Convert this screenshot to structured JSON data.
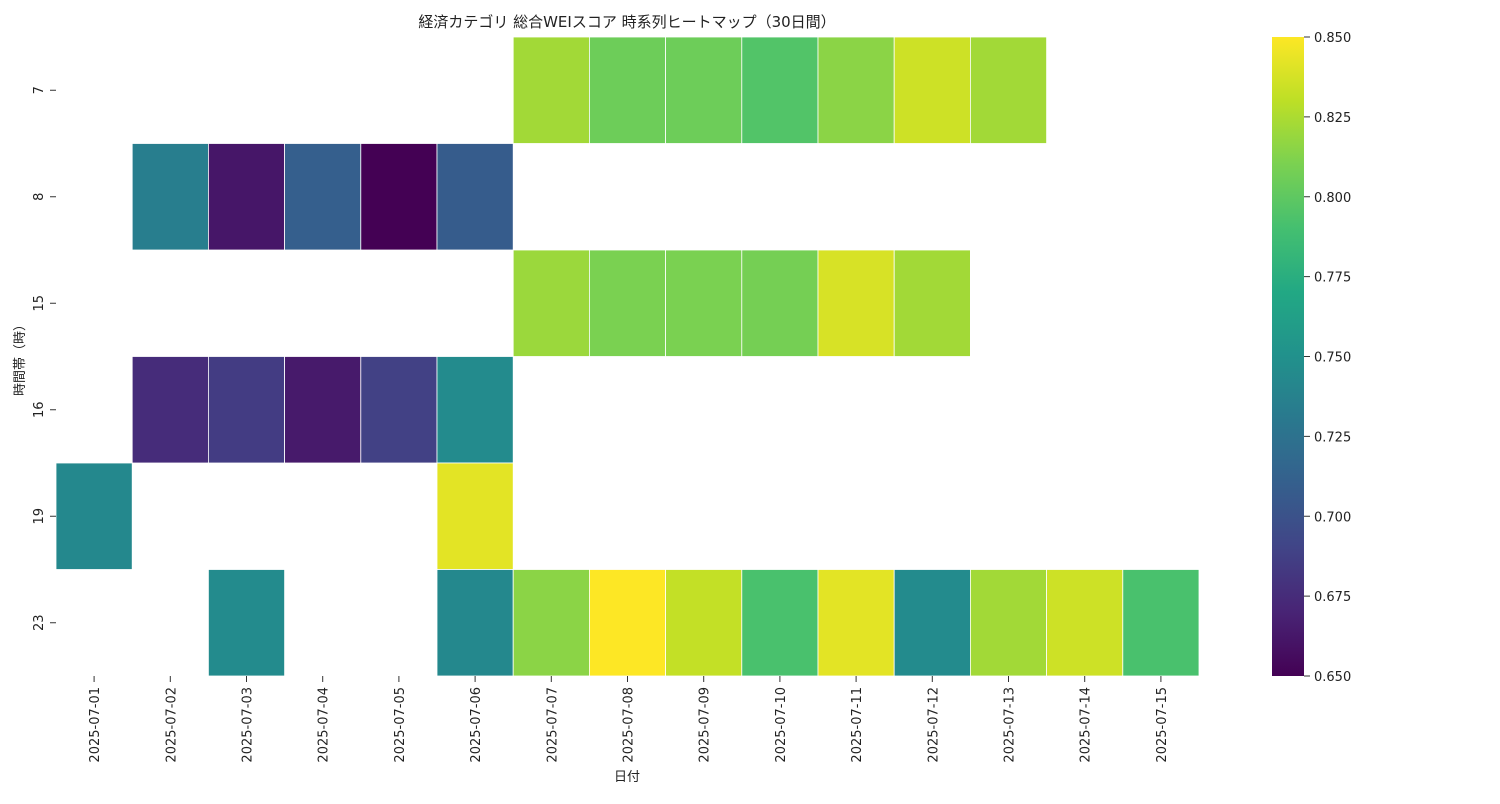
{
  "chart_data": {
    "type": "heatmap",
    "title": "経済カテゴリ 総合WEIスコア 時系列ヒートマップ（30日間）",
    "xlabel": "日付",
    "ylabel": "時間帯（時）",
    "x": [
      "2025-07-01",
      "2025-07-02",
      "2025-07-03",
      "2025-07-04",
      "2025-07-05",
      "2025-07-06",
      "2025-07-07",
      "2025-07-08",
      "2025-07-09",
      "2025-07-10",
      "2025-07-11",
      "2025-07-12",
      "2025-07-13",
      "2025-07-14",
      "2025-07-15"
    ],
    "y": [
      "7",
      "8",
      "15",
      "16",
      "19",
      "23"
    ],
    "values": [
      [
        null,
        null,
        null,
        null,
        null,
        null,
        0.822,
        0.805,
        0.805,
        0.795,
        0.815,
        0.835,
        0.822,
        null,
        null
      ],
      [
        null,
        0.735,
        0.662,
        0.71,
        0.65,
        0.708,
        null,
        null,
        null,
        null,
        null,
        null,
        null,
        null,
        null
      ],
      [
        null,
        null,
        null,
        null,
        null,
        null,
        0.82,
        0.81,
        0.81,
        0.808,
        0.838,
        0.822,
        null,
        null,
        null
      ],
      [
        null,
        0.675,
        0.685,
        0.664,
        0.688,
        0.745,
        null,
        null,
        null,
        null,
        null,
        null,
        null,
        null,
        null
      ],
      [
        0.743,
        null,
        null,
        null,
        null,
        0.842,
        null,
        null,
        null,
        null,
        null,
        null,
        null,
        null,
        null
      ],
      [
        null,
        null,
        0.745,
        null,
        null,
        0.743,
        0.815,
        0.85,
        0.832,
        0.792,
        0.842,
        0.745,
        0.822,
        0.835,
        0.792
      ]
    ],
    "colormap": "viridis",
    "colorbar": {
      "min": 0.65,
      "max": 0.85,
      "ticks": [
        "0.650",
        "0.675",
        "0.700",
        "0.725",
        "0.750",
        "0.775",
        "0.800",
        "0.825",
        "0.850"
      ]
    },
    "grid": false
  }
}
